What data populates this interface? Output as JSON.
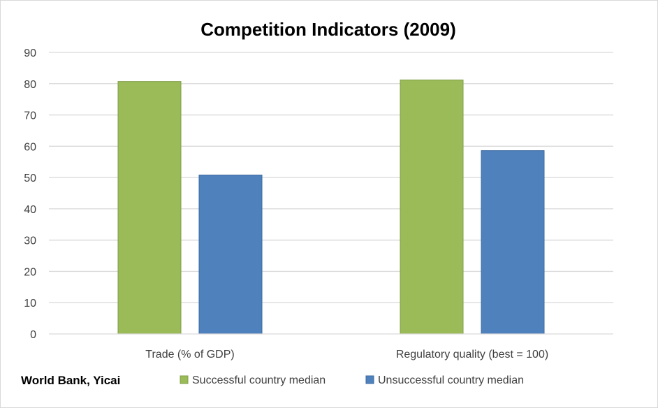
{
  "chart_data": {
    "type": "bar",
    "title": "Competition Indicators (2009)",
    "categories": [
      "Trade (% of GDP)",
      "Regulatory quality (best = 100)"
    ],
    "series": [
      {
        "name": "Successful country median",
        "values": [
          80.7,
          81.2
        ],
        "color": "#9bbb59",
        "border": "#7f9c46"
      },
      {
        "name": "Unsuccessful country median",
        "values": [
          50.8,
          58.6
        ],
        "color": "#4f81bd",
        "border": "#3b6a9f"
      }
    ],
    "xlabel": "",
    "ylabel": "",
    "ylim": [
      0,
      90
    ],
    "yticks": [
      0,
      10,
      20,
      30,
      40,
      50,
      60,
      70,
      80,
      90
    ],
    "grid": true,
    "gridColor": "#d9d9d9",
    "legend_position": "bottom",
    "source_note": "World Bank, Yicai"
  }
}
